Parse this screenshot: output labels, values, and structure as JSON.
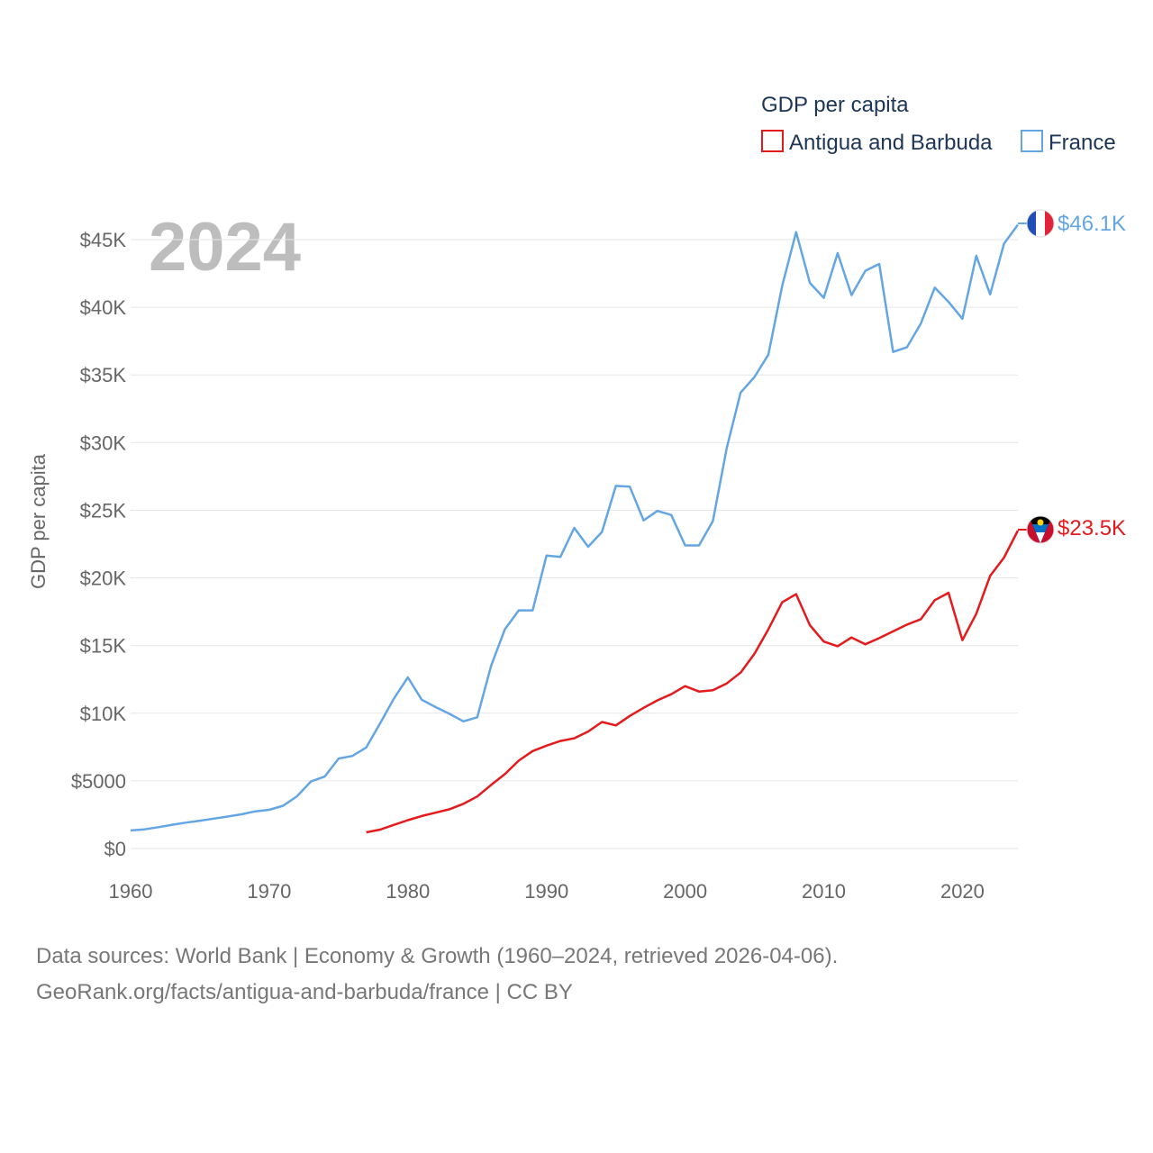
{
  "chart_data": {
    "type": "line",
    "title": "GDP per capita",
    "year_label": "2024",
    "ylabel": "GDP per capita",
    "xlabel": "",
    "xlim": [
      1960,
      2024
    ],
    "ylim": [
      0,
      45000
    ],
    "x_ticks": [
      1960,
      1970,
      1980,
      1990,
      2000,
      2010,
      2020
    ],
    "y_ticks": [
      {
        "value": 0,
        "label": "$0"
      },
      {
        "value": 5000,
        "label": "$5000"
      },
      {
        "value": 10000,
        "label": "$10K"
      },
      {
        "value": 15000,
        "label": "$15K"
      },
      {
        "value": 20000,
        "label": "$20K"
      },
      {
        "value": 25000,
        "label": "$25K"
      },
      {
        "value": 30000,
        "label": "$30K"
      },
      {
        "value": 35000,
        "label": "$35K"
      },
      {
        "value": 40000,
        "label": "$40K"
      },
      {
        "value": 45000,
        "label": "$45K"
      }
    ],
    "legend_position": "top-right",
    "series": [
      {
        "name": "Antigua and Barbuda",
        "color": "#e41a1c",
        "end_label": "$23.5K",
        "flag": "antigua-and-barbuda",
        "x": [
          1977,
          1978,
          1979,
          1980,
          1981,
          1982,
          1983,
          1984,
          1985,
          1986,
          1987,
          1988,
          1989,
          1990,
          1991,
          1992,
          1993,
          1994,
          1995,
          1996,
          1997,
          1998,
          1999,
          2000,
          2001,
          2002,
          2003,
          2004,
          2005,
          2006,
          2007,
          2008,
          2009,
          2010,
          2011,
          2012,
          2013,
          2014,
          2015,
          2016,
          2017,
          2018,
          2019,
          2020,
          2021,
          2022,
          2023,
          2024
        ],
        "values": [
          1200,
          1400,
          1750,
          2100,
          2400,
          2650,
          2900,
          3300,
          3850,
          4700,
          5500,
          6500,
          7200,
          7600,
          7950,
          8150,
          8650,
          9350,
          9100,
          9800,
          10400,
          10950,
          11400,
          12000,
          11600,
          11700,
          12200,
          13000,
          14400,
          16200,
          18200,
          18800,
          16500,
          15300,
          14950,
          15600,
          15100,
          15550,
          16050,
          16550,
          16950,
          18350,
          18900,
          15400,
          17350,
          20150,
          21500,
          23500
        ]
      },
      {
        "name": "France",
        "color": "#64a6e3",
        "end_label": "$46.1K",
        "flag": "france",
        "x": [
          1960,
          1961,
          1962,
          1963,
          1964,
          1965,
          1966,
          1967,
          1968,
          1969,
          1970,
          1971,
          1972,
          1973,
          1974,
          1975,
          1976,
          1977,
          1978,
          1979,
          1980,
          1981,
          1982,
          1983,
          1984,
          1985,
          1986,
          1987,
          1988,
          1989,
          1990,
          1991,
          1992,
          1993,
          1994,
          1995,
          1996,
          1997,
          1998,
          1999,
          2000,
          2001,
          2002,
          2003,
          2004,
          2005,
          2006,
          2007,
          2008,
          2009,
          2010,
          2011,
          2012,
          2013,
          2014,
          2015,
          2016,
          2017,
          2018,
          2019,
          2020,
          2021,
          2022,
          2023,
          2024
        ],
        "values": [
          1340,
          1420,
          1580,
          1760,
          1920,
          2060,
          2210,
          2360,
          2530,
          2750,
          2860,
          3160,
          3860,
          4950,
          5320,
          6650,
          6840,
          7470,
          9250,
          11100,
          12650,
          11000,
          10450,
          9950,
          9400,
          9700,
          13500,
          16200,
          17600,
          17600,
          21650,
          21550,
          23700,
          22300,
          23400,
          26800,
          26750,
          24250,
          24950,
          24650,
          22400,
          22400,
          24200,
          29600,
          33700,
          34850,
          36500,
          41600,
          45550,
          41800,
          40700,
          44000,
          40900,
          42700,
          43200,
          36700,
          37050,
          38800,
          41450,
          40400,
          39150,
          43800,
          40950,
          44700,
          46100
        ]
      }
    ]
  },
  "legend": {
    "title": "GDP per capita",
    "items": [
      "Antigua and Barbuda",
      "France"
    ]
  },
  "source": {
    "line1": "Data sources: World Bank | Economy & Growth (1960–2024, retrieved 2026-04-06).",
    "line2": "GeoRank.org/facts/antigua-and-barbuda/france | CC BY"
  }
}
